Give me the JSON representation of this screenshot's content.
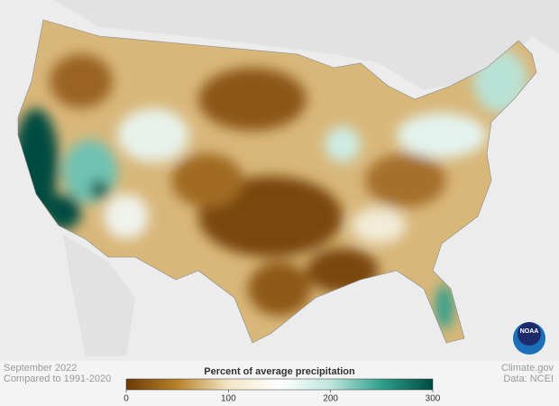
{
  "header": {
    "title": "September 2022",
    "subtitle": "Compared to 1991-2020"
  },
  "legend": {
    "title": "Percent of average precipitation",
    "range": [
      0,
      300
    ],
    "ticks": [
      0,
      100,
      200,
      300
    ],
    "colors": [
      "#6b3a06",
      "#b8822a",
      "#f3e6c6",
      "#ffffff",
      "#bfe6dd",
      "#2f9e8c",
      "#004b40"
    ]
  },
  "credits": {
    "source": "Climate.gov",
    "data": "Data: NCEI"
  },
  "logo": "NOAA"
}
